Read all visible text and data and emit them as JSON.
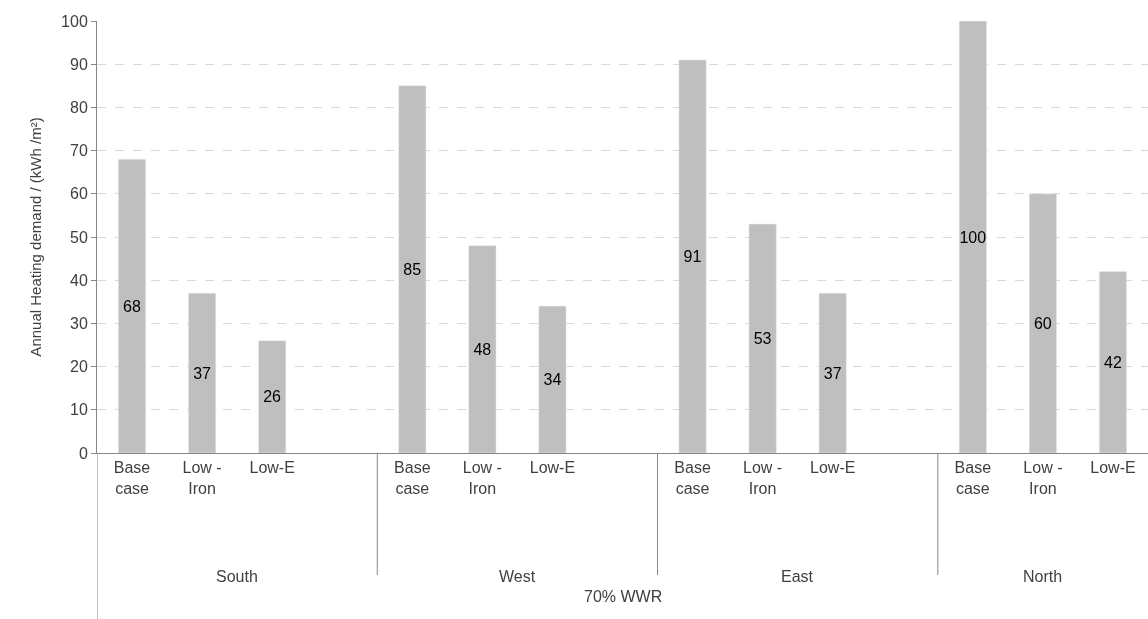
{
  "chart_data": {
    "type": "bar",
    "categories": [
      "Base case",
      "Low - Iron",
      "Low-E",
      null,
      "Base case",
      "Low - Iron",
      "Low-E",
      null,
      "Base case",
      "Low - Iron",
      "Low-E",
      null,
      "Base case",
      "Low - Iron",
      "Low-E"
    ],
    "values": [
      68,
      37,
      26,
      null,
      85,
      48,
      34,
      null,
      91,
      53,
      37,
      null,
      100,
      60,
      42
    ],
    "color": "#bfbfbf",
    "ylabel": "Annual Heating demand / (kWh /m²)",
    "annotations": [
      "South",
      "West",
      "East",
      "North",
      "70% WWR"
    ],
    "ylim": [
      0,
      100
    ],
    "yticks": [
      0,
      10,
      20,
      30,
      40,
      50,
      60,
      70,
      80,
      90,
      100
    ],
    "grid": "y",
    "data_labels": true
  }
}
